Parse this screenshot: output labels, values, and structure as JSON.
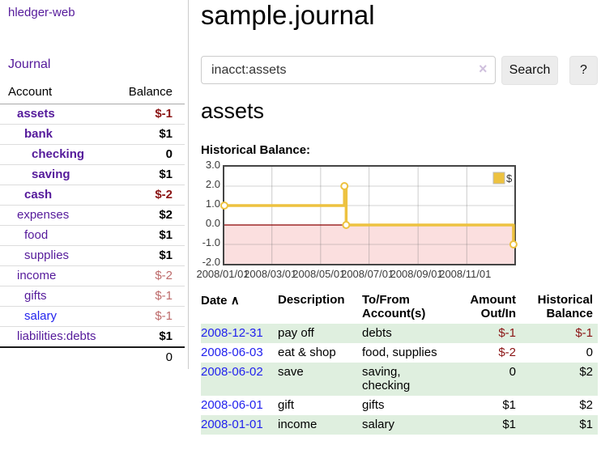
{
  "sidebar": {
    "brand": "hledger-web",
    "nav": [
      {
        "label": "Journal"
      }
    ],
    "accounts_table": {
      "headers": [
        "Account",
        "Balance"
      ],
      "rows": [
        {
          "name": "assets",
          "indent": 1,
          "bold": true,
          "link_color": "purple",
          "balance": "$-1",
          "balance_style": "bold-red"
        },
        {
          "name": "bank",
          "indent": 2,
          "bold": true,
          "link_color": "purple",
          "balance": "$1",
          "balance_style": "bold-black"
        },
        {
          "name": "checking",
          "indent": 3,
          "bold": true,
          "link_color": "purple",
          "balance": "0",
          "balance_style": "bold-black"
        },
        {
          "name": "saving",
          "indent": 3,
          "bold": true,
          "link_color": "purple",
          "balance": "$1",
          "balance_style": "bold-black"
        },
        {
          "name": "cash",
          "indent": 2,
          "bold": true,
          "link_color": "purple",
          "balance": "$-2",
          "balance_style": "bold-red"
        },
        {
          "name": "expenses",
          "indent": 1,
          "bold": false,
          "link_color": "purple",
          "balance": "$2",
          "balance_style": "bold-black"
        },
        {
          "name": "food",
          "indent": 2,
          "bold": false,
          "link_color": "purple",
          "balance": "$1",
          "balance_style": "bold-black"
        },
        {
          "name": "supplies",
          "indent": 2,
          "bold": false,
          "link_color": "purple",
          "balance": "$1",
          "balance_style": "bold-black"
        },
        {
          "name": "income",
          "indent": 1,
          "bold": false,
          "link_color": "purple",
          "balance": "$-2",
          "balance_style": "muted-red"
        },
        {
          "name": "gifts",
          "indent": 2,
          "bold": false,
          "link_color": "purple",
          "balance": "$-1",
          "balance_style": "muted-red"
        },
        {
          "name": "salary",
          "indent": 2,
          "bold": false,
          "link_color": "blue",
          "balance": "$-1",
          "balance_style": "muted-red"
        },
        {
          "name": "liabilities:debts",
          "indent": 1,
          "bold": false,
          "link_color": "purple",
          "balance": "$1",
          "balance_style": "bold-black"
        }
      ],
      "total": "0"
    }
  },
  "header": {
    "title": "sample.journal"
  },
  "search": {
    "value": "inacct:assets",
    "clear_icon": "×",
    "button_label": "Search",
    "help_label": "?"
  },
  "account_page": {
    "heading": "assets",
    "section_label": "Historical Balance:"
  },
  "chart_data": {
    "type": "line",
    "subtype": "step-after",
    "title": "Historical Balance",
    "series": [
      {
        "name": "$",
        "color": "#edc240",
        "points": [
          {
            "date": "2008-01-01",
            "x": 0.0,
            "y": 1
          },
          {
            "date": "2008-06-01",
            "x": 0.414,
            "y": 2
          },
          {
            "date": "2008-06-03",
            "x": 0.42,
            "y": 0
          },
          {
            "date": "2008-12-31",
            "x": 0.997,
            "y": -1
          }
        ]
      }
    ],
    "ylim": [
      -2,
      3
    ],
    "yticks": [
      "3.0",
      "2.0",
      "1.0",
      "0.0",
      "-1.0",
      "-2.0"
    ],
    "ytick_values": [
      3,
      2,
      1,
      0,
      -1,
      -2
    ],
    "xticks": [
      {
        "label": "2008/01/01",
        "x": 0.0
      },
      {
        "label": "2008/03/01",
        "x": 0.164
      },
      {
        "label": "2008/05/01",
        "x": 0.332
      },
      {
        "label": "2008/07/01",
        "x": 0.499
      },
      {
        "label": "2008/09/01",
        "x": 0.668
      },
      {
        "label": "2008/11/01",
        "x": 0.836
      }
    ],
    "grid": true,
    "negative_region": {
      "from": -2,
      "to": 0,
      "fill": "#f6b8b8",
      "line_color": "#8b0000"
    },
    "legend": {
      "label": "$",
      "swatch_color": "#edc240",
      "position": "top-right"
    }
  },
  "register": {
    "headers": [
      "Date",
      "Description",
      "To/From Account(s)",
      "Amount Out/In",
      "Historical Balance"
    ],
    "sort_icon": "∧",
    "rows": [
      {
        "date": "2008-12-31",
        "description": "pay off",
        "accounts": "debts",
        "amount": "$-1",
        "amount_negative": true,
        "balance": "$-1",
        "balance_negative": true
      },
      {
        "date": "2008-06-03",
        "description": "eat & shop",
        "accounts": "food, supplies",
        "amount": "$-2",
        "amount_negative": true,
        "balance": "0",
        "balance_negative": false
      },
      {
        "date": "2008-06-02",
        "description": "save",
        "accounts": "saving, checking",
        "amount": "0",
        "amount_negative": false,
        "balance": "$2",
        "balance_negative": false
      },
      {
        "date": "2008-06-01",
        "description": "gift",
        "accounts": "gifts",
        "amount": "$1",
        "amount_negative": false,
        "balance": "$2",
        "balance_negative": false
      },
      {
        "date": "2008-01-01",
        "description": "income",
        "accounts": "salary",
        "amount": "$1",
        "amount_negative": false,
        "balance": "$1",
        "balance_negative": false
      }
    ]
  }
}
